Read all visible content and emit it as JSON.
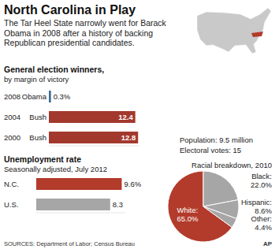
{
  "header": {
    "title": "North Carolina in Play",
    "subtitle": "The Tar Heel State narrowly went for Barack Obama in 2008 after a history of backing Republican presidential candidates."
  },
  "facts": [
    "Population: 9.5 million",
    "Electoral votes: 15"
  ],
  "footer": {
    "sources": "SOURCES: Department of Labor; Census Bureau",
    "credit": "AP"
  },
  "chart_data": [
    {
      "type": "bar",
      "orientation": "horizontal",
      "title": "General election winners,",
      "subtitle": "by margin of victory",
      "categories": [
        "2008",
        "2004",
        "2000"
      ],
      "annotations": [
        "Obama",
        "Bush",
        "Bush"
      ],
      "values": [
        0.3,
        12.4,
        12.8
      ],
      "value_labels": [
        "0.3%",
        "12.4",
        "12.8"
      ],
      "colors": [
        "#3b6a96",
        "#a3392d",
        "#a3392d"
      ],
      "xlim": [
        0,
        13
      ],
      "data_labels": true
    },
    {
      "type": "bar",
      "orientation": "horizontal",
      "title": "Unemployment rate",
      "subtitle": "Seasonally adjusted, July 2012",
      "categories": [
        "N.C.",
        "U.S."
      ],
      "values": [
        9.6,
        8.3
      ],
      "value_labels": [
        "9.6%",
        "8.3"
      ],
      "colors": [
        "#b33b2c",
        "#a6a6a6"
      ],
      "xlim": [
        0,
        10
      ],
      "data_labels": true
    },
    {
      "type": "pie",
      "title": "Racial breakdown, 2010",
      "categories": [
        "White:",
        "Black:",
        "Hispanic:",
        "Other:"
      ],
      "values": [
        65.0,
        22.0,
        8.6,
        4.4
      ],
      "value_labels": [
        "65.0%",
        "22.0%",
        "8.6%",
        "4.4%"
      ],
      "colors": [
        "#b33b2c",
        "#a6a6a6",
        "#a6a6a6",
        "#a6a6a6"
      ],
      "data_labels": true
    }
  ]
}
